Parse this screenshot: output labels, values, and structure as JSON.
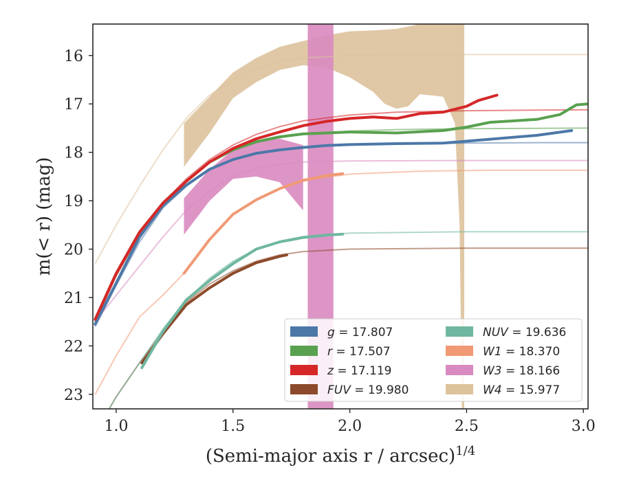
{
  "chart_data": {
    "type": "line",
    "title": "",
    "xlabel": "(Semi-major axis r / arcsec)",
    "xlabel_exponent": "1/4",
    "ylabel": "m(< r) (mag)",
    "xlim": [
      0.9,
      3.02
    ],
    "ylim": [
      23.3,
      15.35
    ],
    "y_inverted": true,
    "grid": false,
    "xticks": [
      1.0,
      1.5,
      2.0,
      2.5,
      3.0
    ],
    "xtick_labels": [
      "1.0",
      "1.5",
      "2.0",
      "2.5",
      "3.0"
    ],
    "yticks": [
      16,
      17,
      18,
      19,
      20,
      21,
      22,
      23
    ],
    "ytick_labels": [
      "16",
      "17",
      "18",
      "19",
      "20",
      "21",
      "22",
      "23"
    ],
    "legend_position": "lower-right",
    "series": [
      {
        "name": "g",
        "legend": "g = 17.807",
        "color": "#4c78a8",
        "asymptote": 17.807,
        "data": [
          [
            0.91,
            21.55
          ],
          [
            1.0,
            20.7
          ],
          [
            1.1,
            19.75
          ],
          [
            1.2,
            19.1
          ],
          [
            1.3,
            18.68
          ],
          [
            1.4,
            18.35
          ],
          [
            1.5,
            18.15
          ],
          [
            1.6,
            18.02
          ],
          [
            1.7,
            17.95
          ],
          [
            1.8,
            17.9
          ],
          [
            1.9,
            17.86
          ],
          [
            2.0,
            17.84
          ],
          [
            2.2,
            17.82
          ],
          [
            2.4,
            17.81
          ],
          [
            2.6,
            17.73
          ],
          [
            2.8,
            17.65
          ],
          [
            2.95,
            17.55
          ]
        ],
        "model": [
          [
            0.91,
            21.6
          ],
          [
            1.0,
            20.75
          ],
          [
            1.1,
            19.85
          ],
          [
            1.2,
            19.15
          ],
          [
            1.3,
            18.7
          ],
          [
            1.4,
            18.35
          ],
          [
            1.5,
            18.15
          ],
          [
            1.6,
            18.02
          ],
          [
            1.7,
            17.94
          ],
          [
            1.8,
            17.89
          ],
          [
            2.0,
            17.85
          ],
          [
            2.2,
            17.83
          ],
          [
            2.5,
            17.81
          ],
          [
            2.8,
            17.8
          ],
          [
            3.02,
            17.8
          ]
        ]
      },
      {
        "name": "r",
        "legend": "r = 17.507",
        "color": "#59a14f",
        "asymptote": 17.507,
        "data": [
          [
            0.91,
            21.45
          ],
          [
            1.0,
            20.5
          ],
          [
            1.1,
            19.65
          ],
          [
            1.2,
            19.05
          ],
          [
            1.3,
            18.6
          ],
          [
            1.4,
            18.2
          ],
          [
            1.5,
            17.95
          ],
          [
            1.6,
            17.78
          ],
          [
            1.7,
            17.68
          ],
          [
            1.8,
            17.62
          ],
          [
            1.9,
            17.6
          ],
          [
            2.0,
            17.58
          ],
          [
            2.2,
            17.6
          ],
          [
            2.4,
            17.55
          ],
          [
            2.5,
            17.48
          ],
          [
            2.6,
            17.38
          ],
          [
            2.8,
            17.32
          ],
          [
            2.9,
            17.22
          ],
          [
            2.97,
            17.02
          ],
          [
            3.02,
            17.0
          ]
        ],
        "model": [
          [
            0.91,
            21.5
          ],
          [
            1.0,
            20.55
          ],
          [
            1.1,
            19.7
          ],
          [
            1.2,
            19.05
          ],
          [
            1.3,
            18.6
          ],
          [
            1.4,
            18.2
          ],
          [
            1.5,
            17.95
          ],
          [
            1.6,
            17.8
          ],
          [
            1.7,
            17.7
          ],
          [
            1.8,
            17.62
          ],
          [
            2.0,
            17.56
          ],
          [
            2.2,
            17.53
          ],
          [
            2.5,
            17.51
          ],
          [
            3.02,
            17.5
          ]
        ]
      },
      {
        "name": "z",
        "legend": "z = 17.119",
        "color": "#d62728",
        "asymptote": 17.119,
        "data": [
          [
            0.91,
            21.45
          ],
          [
            1.0,
            20.5
          ],
          [
            1.1,
            19.65
          ],
          [
            1.2,
            19.05
          ],
          [
            1.3,
            18.6
          ],
          [
            1.4,
            18.2
          ],
          [
            1.5,
            17.92
          ],
          [
            1.6,
            17.72
          ],
          [
            1.7,
            17.58
          ],
          [
            1.8,
            17.45
          ],
          [
            1.9,
            17.36
          ],
          [
            2.0,
            17.3
          ],
          [
            2.1,
            17.27
          ],
          [
            2.2,
            17.3
          ],
          [
            2.3,
            17.2
          ],
          [
            2.4,
            17.17
          ],
          [
            2.5,
            17.05
          ],
          [
            2.55,
            16.93
          ],
          [
            2.63,
            16.82
          ]
        ],
        "model": [
          [
            0.91,
            21.5
          ],
          [
            1.0,
            20.55
          ],
          [
            1.1,
            19.7
          ],
          [
            1.2,
            19.05
          ],
          [
            1.3,
            18.55
          ],
          [
            1.4,
            18.15
          ],
          [
            1.5,
            17.85
          ],
          [
            1.6,
            17.63
          ],
          [
            1.7,
            17.47
          ],
          [
            1.8,
            17.35
          ],
          [
            2.0,
            17.23
          ],
          [
            2.2,
            17.17
          ],
          [
            2.5,
            17.14
          ],
          [
            3.02,
            17.12
          ]
        ]
      },
      {
        "name": "FUV",
        "legend": "FUV = 19.980",
        "color": "#8c4a2a",
        "asymptote": 19.98,
        "data": [
          [
            1.11,
            22.35
          ],
          [
            1.2,
            21.75
          ],
          [
            1.3,
            21.15
          ],
          [
            1.4,
            20.8
          ],
          [
            1.5,
            20.5
          ],
          [
            1.6,
            20.28
          ],
          [
            1.7,
            20.15
          ],
          [
            1.73,
            20.12
          ]
        ],
        "model": [
          [
            0.97,
            23.3
          ],
          [
            1.0,
            23.05
          ],
          [
            1.1,
            22.35
          ],
          [
            1.2,
            21.7
          ],
          [
            1.3,
            21.1
          ],
          [
            1.4,
            20.72
          ],
          [
            1.5,
            20.45
          ],
          [
            1.6,
            20.25
          ],
          [
            1.7,
            20.12
          ],
          [
            1.8,
            20.05
          ],
          [
            2.0,
            20.0
          ],
          [
            2.5,
            19.98
          ],
          [
            3.02,
            19.98
          ]
        ]
      },
      {
        "name": "NUV",
        "legend": "NUV = 19.636",
        "color": "#6fb7a0",
        "asymptote": 19.636,
        "data": [
          [
            1.11,
            22.45
          ],
          [
            1.2,
            21.7
          ],
          [
            1.3,
            21.05
          ],
          [
            1.4,
            20.65
          ],
          [
            1.5,
            20.3
          ],
          [
            1.6,
            20.0
          ],
          [
            1.7,
            19.85
          ],
          [
            1.8,
            19.76
          ],
          [
            1.9,
            19.71
          ],
          [
            1.97,
            19.69
          ]
        ],
        "model": [
          [
            0.97,
            23.3
          ],
          [
            1.0,
            23.05
          ],
          [
            1.1,
            22.35
          ],
          [
            1.2,
            21.65
          ],
          [
            1.3,
            21.05
          ],
          [
            1.4,
            20.6
          ],
          [
            1.5,
            20.25
          ],
          [
            1.6,
            20.0
          ],
          [
            1.7,
            19.84
          ],
          [
            1.8,
            19.74
          ],
          [
            2.0,
            19.67
          ],
          [
            2.5,
            19.64
          ],
          [
            3.02,
            19.64
          ]
        ]
      },
      {
        "name": "W1",
        "legend": "W1 = 18.370",
        "color": "#f09a75",
        "asymptote": 18.37,
        "data": [
          [
            1.29,
            20.5
          ],
          [
            1.4,
            19.8
          ],
          [
            1.5,
            19.28
          ],
          [
            1.6,
            18.98
          ],
          [
            1.7,
            18.75
          ],
          [
            1.8,
            18.58
          ],
          [
            1.9,
            18.48
          ],
          [
            1.97,
            18.44
          ]
        ],
        "model": [
          [
            0.91,
            23.0
          ],
          [
            1.0,
            22.2
          ],
          [
            1.1,
            21.4
          ],
          [
            1.2,
            20.95
          ],
          [
            1.3,
            20.45
          ],
          [
            1.4,
            19.8
          ],
          [
            1.5,
            19.3
          ],
          [
            1.6,
            18.98
          ],
          [
            1.7,
            18.75
          ],
          [
            1.8,
            18.58
          ],
          [
            2.0,
            18.45
          ],
          [
            2.3,
            18.39
          ],
          [
            2.6,
            18.37
          ],
          [
            3.02,
            18.37
          ]
        ]
      },
      {
        "name": "W3",
        "legend": "W3 = 18.166",
        "color": "#d98ac0",
        "asymptote": 18.166,
        "band_upper": [
          [
            1.29,
            18.95
          ],
          [
            1.4,
            18.35
          ],
          [
            1.5,
            17.95
          ],
          [
            1.6,
            17.78
          ],
          [
            1.7,
            17.72
          ],
          [
            1.8,
            17.85
          ]
        ],
        "band_lower": [
          [
            1.29,
            19.7
          ],
          [
            1.4,
            19.0
          ],
          [
            1.5,
            18.55
          ],
          [
            1.6,
            18.5
          ],
          [
            1.7,
            18.62
          ],
          [
            1.8,
            19.2
          ]
        ],
        "vband": [
          1.82,
          1.93
        ],
        "model": [
          [
            0.91,
            21.5
          ],
          [
            1.0,
            20.95
          ],
          [
            1.1,
            20.35
          ],
          [
            1.2,
            19.75
          ],
          [
            1.3,
            19.2
          ],
          [
            1.4,
            18.8
          ],
          [
            1.5,
            18.5
          ],
          [
            1.6,
            18.33
          ],
          [
            1.7,
            18.25
          ],
          [
            1.8,
            18.2
          ],
          [
            2.0,
            18.18
          ],
          [
            2.5,
            18.17
          ],
          [
            3.02,
            18.17
          ]
        ]
      },
      {
        "name": "W4",
        "legend": "W4 = 15.977",
        "color": "#ddc29c",
        "asymptote": 15.977,
        "band_upper": [
          [
            1.29,
            17.4
          ],
          [
            1.4,
            16.85
          ],
          [
            1.5,
            16.35
          ],
          [
            1.6,
            16.05
          ],
          [
            1.7,
            15.82
          ],
          [
            1.8,
            15.7
          ],
          [
            1.9,
            15.58
          ],
          [
            2.0,
            15.5
          ],
          [
            2.1,
            15.48
          ],
          [
            2.2,
            15.45
          ],
          [
            2.3,
            15.35
          ],
          [
            2.49,
            15.35
          ]
        ],
        "band_lower": [
          [
            1.29,
            18.3
          ],
          [
            1.4,
            17.6
          ],
          [
            1.5,
            16.88
          ],
          [
            1.6,
            16.55
          ],
          [
            1.7,
            16.3
          ],
          [
            1.8,
            16.2
          ],
          [
            1.9,
            16.25
          ],
          [
            2.0,
            16.45
          ],
          [
            2.05,
            16.6
          ],
          [
            2.1,
            16.75
          ],
          [
            2.15,
            17.0
          ],
          [
            2.2,
            17.1
          ],
          [
            2.25,
            17.05
          ],
          [
            2.3,
            16.8
          ],
          [
            2.4,
            16.85
          ],
          [
            2.45,
            17.4
          ],
          [
            2.47,
            19.5
          ],
          [
            2.48,
            23.3
          ],
          [
            2.49,
            23.3
          ]
        ],
        "model": [
          [
            0.91,
            20.3
          ],
          [
            1.0,
            19.5
          ],
          [
            1.1,
            18.7
          ],
          [
            1.2,
            17.95
          ],
          [
            1.3,
            17.3
          ],
          [
            1.4,
            16.82
          ],
          [
            1.5,
            16.5
          ],
          [
            1.6,
            16.28
          ],
          [
            1.7,
            16.12
          ],
          [
            1.8,
            16.05
          ],
          [
            2.0,
            16.0
          ],
          [
            2.5,
            15.98
          ],
          [
            3.02,
            15.98
          ]
        ]
      }
    ]
  }
}
